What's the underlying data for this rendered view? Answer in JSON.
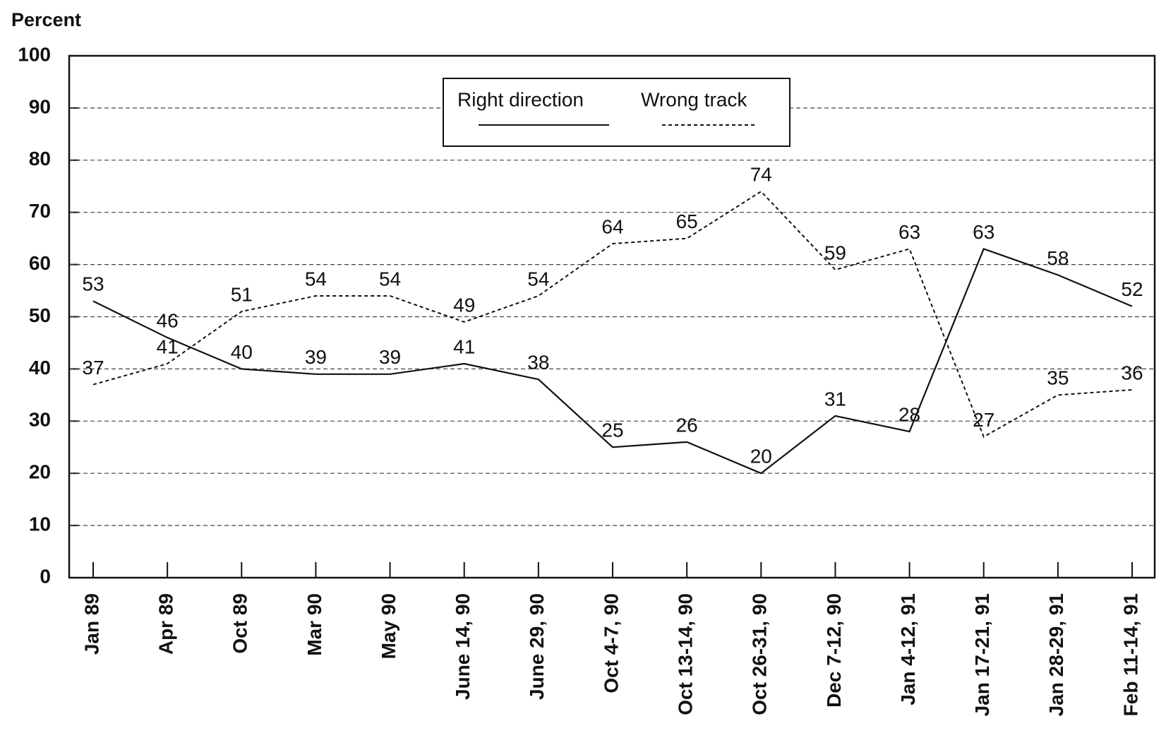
{
  "chart_data": {
    "type": "line",
    "ylabel": "Percent",
    "categories": [
      "Jan 89",
      "Apr 89",
      "Oct 89",
      "Mar 90",
      "May 90",
      "June 14, 90",
      "June 29, 90",
      "Oct 4-7, 90",
      "Oct 13-14, 90",
      "Oct 26-31, 90",
      "Dec 7-12, 90",
      "Jan 4-12, 91",
      "Jan 17-21, 91",
      "Jan 28-29, 91",
      "Feb 11-14, 91"
    ],
    "series": [
      {
        "name": "Right direction",
        "color": "#111111",
        "line_style": "solid",
        "values": [
          53,
          46,
          40,
          39,
          39,
          41,
          38,
          25,
          26,
          20,
          31,
          28,
          63,
          58,
          52
        ]
      },
      {
        "name": "Wrong track",
        "color": "#111111",
        "line_style": "dashed",
        "values": [
          37,
          41,
          51,
          54,
          54,
          49,
          54,
          64,
          65,
          74,
          59,
          63,
          27,
          35,
          36
        ]
      }
    ],
    "ylim": [
      0,
      100
    ],
    "yticks": [
      0,
      10,
      20,
      30,
      40,
      50,
      60,
      70,
      80,
      90,
      100
    ],
    "grid": true,
    "legend": "top"
  }
}
